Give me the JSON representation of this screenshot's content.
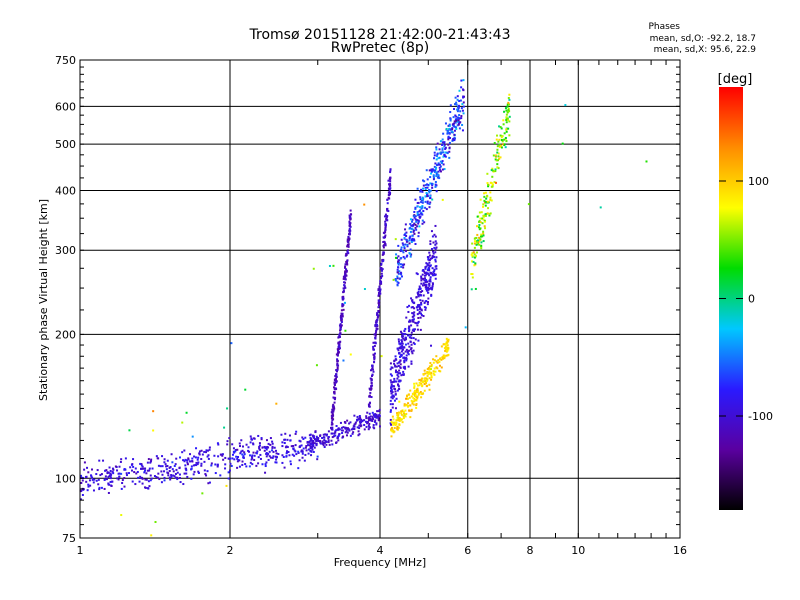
{
  "chart_data": {
    "type": "scatter",
    "title": "Tromsø 20151128 21:42:00-21:43:43",
    "subtitle": "RwPretec (8p)",
    "xlabel": "Frequency [MHz]",
    "ylabel": "Stationary phase Virtual Height [km]",
    "x_scale": "log",
    "y_scale": "log",
    "xlim": [
      1,
      16
    ],
    "ylim": [
      75,
      750
    ],
    "x_ticks": [
      1,
      2,
      4,
      6,
      8,
      10,
      16
    ],
    "x_tick_labels": [
      "1",
      "2",
      "4",
      "6",
      "8",
      "10",
      "16"
    ],
    "y_ticks": [
      75,
      100,
      200,
      300,
      400,
      500,
      600,
      750
    ],
    "y_tick_labels": [
      "75",
      "100",
      "200",
      "300",
      "400",
      "500",
      "600",
      "750"
    ],
    "grid": true,
    "colorbar": {
      "label": "[deg]",
      "range": [
        -180,
        180
      ],
      "ticks": [
        -100,
        0,
        100
      ],
      "tick_labels": [
        "-100",
        "0",
        "100"
      ],
      "colormap": "rainbow",
      "stops": [
        "#000000",
        "#5a00a0",
        "#2a1aff",
        "#00c8ff",
        "#00dc00",
        "#ffff00",
        "#ff8c00",
        "#ff0000"
      ]
    },
    "stats": {
      "title": "Phases",
      "o_line": "mean, sd,O: -92.2, 18.7",
      "x_line": "mean, sd,X: 95.6, 22.9"
    },
    "series": [
      {
        "x_range": [
          1.0,
          3.0
        ],
        "y_start": 98,
        "y_end": 118,
        "spread": 0.07,
        "phase_mean": -95,
        "phase_sd": 20,
        "count": 520
      },
      {
        "x_range": [
          2.9,
          4.0
        ],
        "y_start": 118,
        "y_end": 135,
        "spread": 0.04,
        "phase_mean": -100,
        "phase_sd": 15,
        "count": 220
      },
      {
        "x_range": [
          3.2,
          3.5
        ],
        "y_start": 130,
        "y_end": 360,
        "spread": 0.05,
        "phase_mean": -110,
        "phase_sd": 15,
        "count": 260
      },
      {
        "x_range": [
          3.8,
          4.2
        ],
        "y_start": 140,
        "y_end": 430,
        "spread": 0.06,
        "phase_mean": -105,
        "phase_sd": 15,
        "count": 220
      },
      {
        "x_range": [
          4.2,
          5.2
        ],
        "y_start": 150,
        "y_end": 300,
        "spread": 0.12,
        "phase_mean": -95,
        "phase_sd": 18,
        "count": 420
      },
      {
        "x_range": [
          4.3,
          5.9
        ],
        "y_start": 270,
        "y_end": 620,
        "spread": 0.09,
        "phase_mean": -70,
        "phase_sd": 45,
        "count": 420
      },
      {
        "x_range": [
          4.2,
          5.5
        ],
        "y_start": 125,
        "y_end": 190,
        "spread": 0.05,
        "phase_mean": 95,
        "phase_sd": 20,
        "count": 260
      },
      {
        "x_range": [
          6.1,
          7.3
        ],
        "y_start": 280,
        "y_end": 600,
        "spread": 0.1,
        "phase_mean": 60,
        "phase_sd": 55,
        "count": 200
      },
      {
        "x_range": [
          1.2,
          14.5
        ],
        "y_start": 90,
        "y_end": 520,
        "spread": 0.5,
        "phase_mean": 30,
        "phase_sd": 90,
        "count": 40
      }
    ]
  }
}
